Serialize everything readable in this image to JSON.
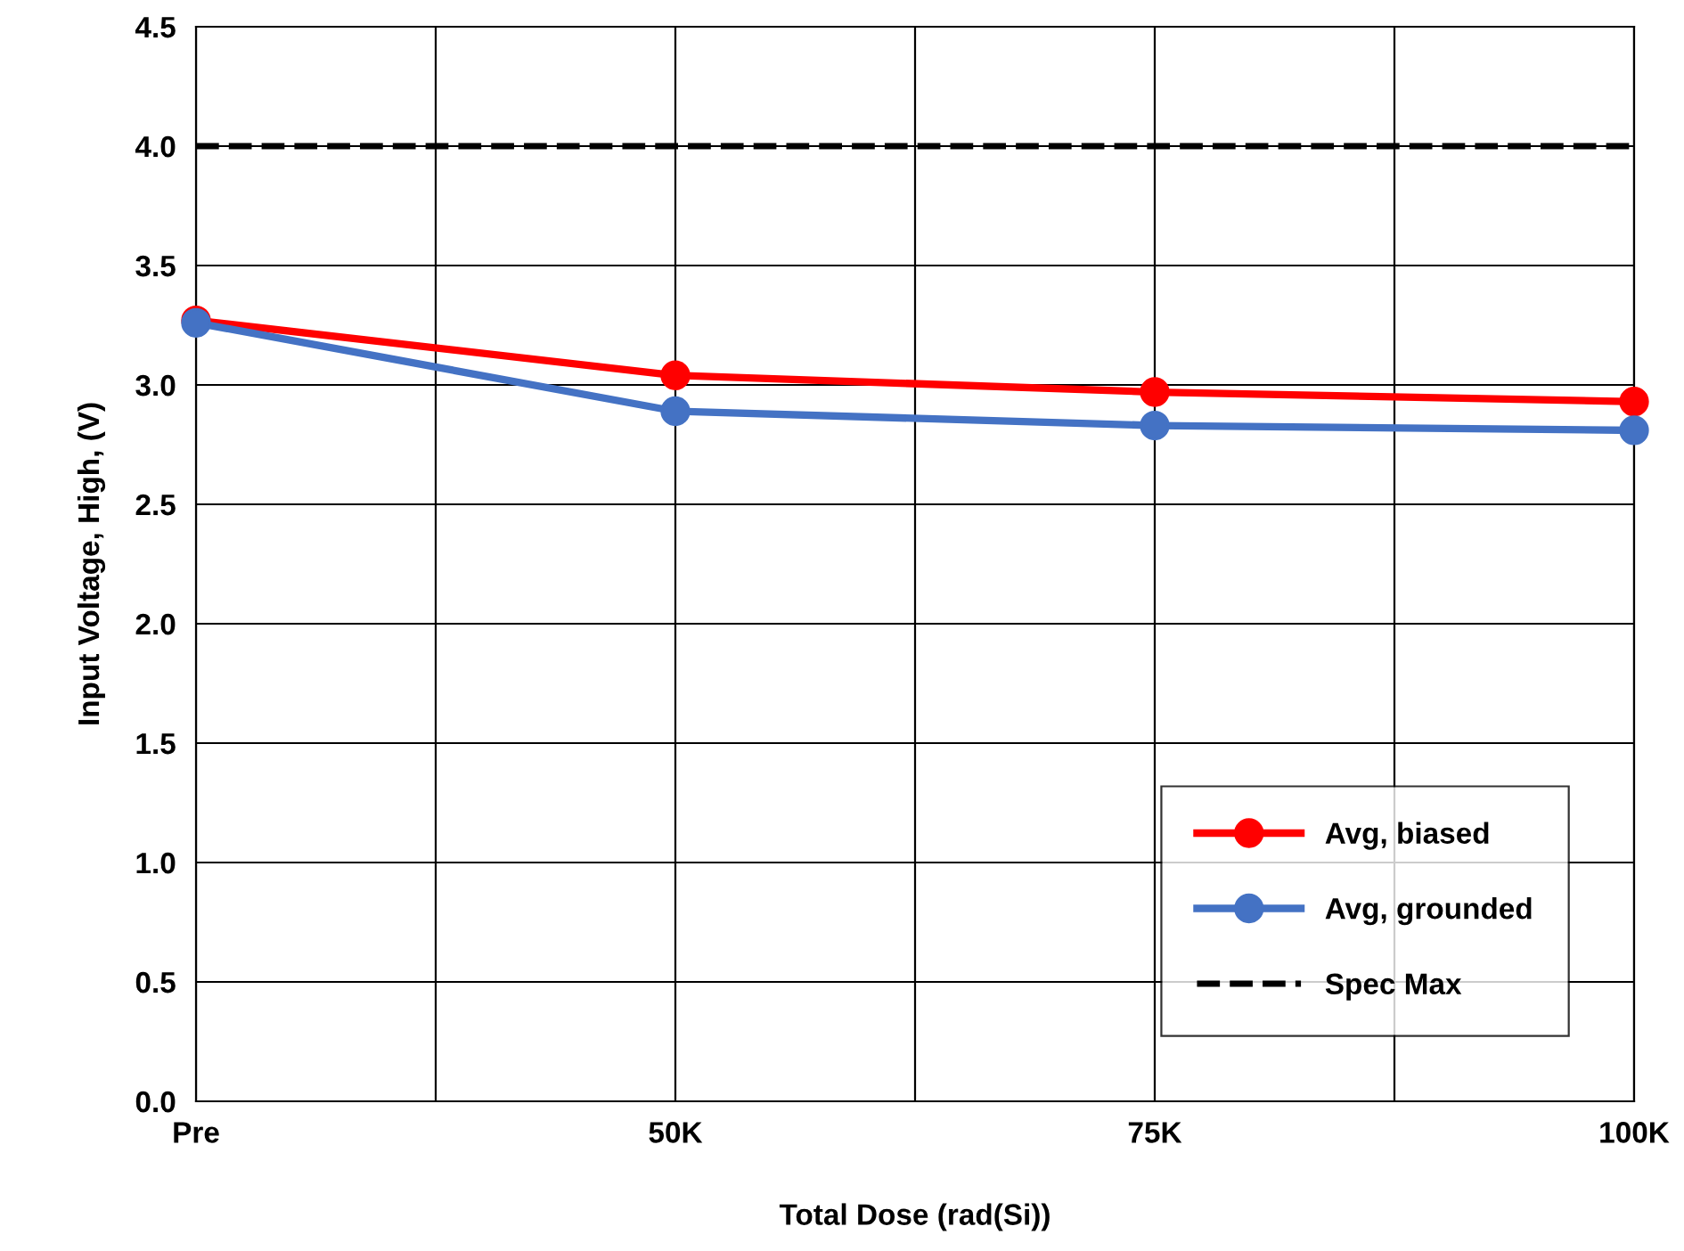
{
  "chart_data": {
    "type": "line",
    "xlabel": "Total Dose (rad(Si))",
    "ylabel": "Input Voltage, High, (V)",
    "categories": [
      "Pre",
      "50K",
      "75K",
      "100K"
    ],
    "series": [
      {
        "name": "Avg, biased",
        "color": "#ff0000",
        "values": [
          3.27,
          3.04,
          2.97,
          2.93
        ]
      },
      {
        "name": "Avg, grounded",
        "color": "#4472c4",
        "values": [
          3.26,
          2.89,
          2.83,
          2.81
        ]
      }
    ],
    "ref_lines": [
      {
        "axis": "y",
        "value": 4.0,
        "label": "Spec Max",
        "color": "#000000",
        "line_style": "dashed"
      }
    ],
    "ylim": [
      0,
      4.5
    ],
    "yticks": [
      {
        "value": 0,
        "label": "0.0"
      },
      {
        "value": 0.5,
        "label": "0.5"
      },
      {
        "value": 1,
        "label": "1.0"
      },
      {
        "value": 1.5,
        "label": "1.5"
      },
      {
        "value": 2,
        "label": "2.0"
      },
      {
        "value": 2.5,
        "label": "2.5"
      },
      {
        "value": 3,
        "label": "3.0"
      },
      {
        "value": 3.5,
        "label": "3.5"
      },
      {
        "value": 4,
        "label": "4.0"
      },
      {
        "value": 4.5,
        "label": "4.5"
      }
    ],
    "grid": true,
    "legend": "bottom right",
    "marker": "circle",
    "line_style": "solid"
  }
}
